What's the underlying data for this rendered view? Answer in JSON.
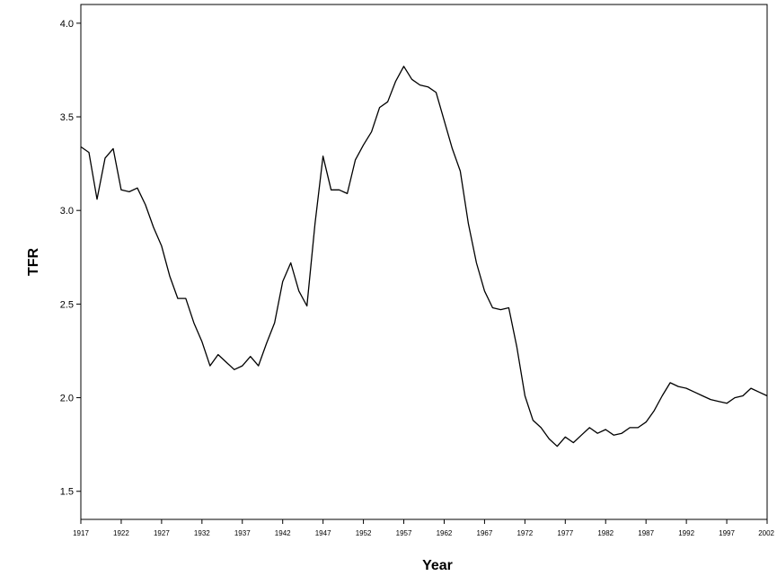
{
  "chart_data": {
    "type": "line",
    "title": "",
    "xlabel": "Year",
    "ylabel": "TFR",
    "xlim": [
      1917,
      2002
    ],
    "ylim": [
      1.35,
      4.1
    ],
    "grid": false,
    "legend": "none",
    "line_color": "#000000",
    "x_ticks": [
      1917,
      1922,
      1927,
      1932,
      1937,
      1942,
      1947,
      1952,
      1957,
      1962,
      1967,
      1972,
      1977,
      1982,
      1987,
      1992,
      1997,
      2002
    ],
    "x_tick_labels": [
      "1917",
      "1922",
      "1927",
      "1932",
      "1937",
      "1942",
      "1947",
      "1952",
      "1957",
      "1962",
      "1967",
      "1972",
      "1977",
      "1982",
      "1987",
      "1992",
      "1997",
      "2002"
    ],
    "y_ticks": [
      1.5,
      2.0,
      2.5,
      3.0,
      3.5,
      4.0
    ],
    "y_tick_labels": [
      "1.5",
      "2.0",
      "2.5",
      "3.0",
      "3.5",
      "4.0"
    ],
    "series": [
      {
        "x": [
          1917,
          1918,
          1919,
          1920,
          1921,
          1922,
          1923,
          1924,
          1925,
          1926,
          1927,
          1928,
          1929,
          1930,
          1931,
          1932,
          1933,
          1934,
          1935,
          1936,
          1937,
          1938,
          1939,
          1940,
          1941,
          1942,
          1943,
          1944,
          1945,
          1946,
          1947,
          1948,
          1949,
          1950,
          1951,
          1952,
          1953,
          1954,
          1955,
          1956,
          1957,
          1958,
          1959,
          1960,
          1961,
          1962,
          1963,
          1964,
          1965,
          1966,
          1967,
          1968,
          1969,
          1970,
          1971,
          1972,
          1973,
          1974,
          1975,
          1976,
          1977,
          1978,
          1979,
          1980,
          1981,
          1982,
          1983,
          1984,
          1985,
          1986,
          1987,
          1988,
          1989,
          1990,
          1991,
          1992,
          1993,
          1994,
          1995,
          1996,
          1997,
          1998,
          1999,
          2000,
          2001,
          2002
        ],
        "values": [
          3.34,
          3.31,
          3.06,
          3.28,
          3.33,
          3.11,
          3.1,
          3.12,
          3.03,
          2.91,
          2.81,
          2.65,
          2.53,
          2.53,
          2.4,
          2.3,
          2.17,
          2.23,
          2.19,
          2.15,
          2.17,
          2.22,
          2.17,
          2.29,
          2.4,
          2.62,
          2.72,
          2.57,
          2.49,
          2.93,
          3.29,
          3.11,
          3.11,
          3.09,
          3.27,
          3.35,
          3.42,
          3.55,
          3.58,
          3.69,
          3.77,
          3.7,
          3.67,
          3.66,
          3.63,
          3.48,
          3.33,
          3.21,
          2.93,
          2.72,
          2.57,
          2.48,
          2.47,
          2.48,
          2.27,
          2.01,
          1.88,
          1.84,
          1.78,
          1.74,
          1.79,
          1.76,
          1.8,
          1.84,
          1.81,
          1.83,
          1.8,
          1.81,
          1.84,
          1.84,
          1.87,
          1.93,
          2.01,
          2.08,
          2.06,
          2.05,
          2.03,
          2.01,
          1.99,
          1.98,
          1.97,
          2.0,
          2.01,
          2.05,
          2.03,
          2.01
        ]
      }
    ]
  }
}
